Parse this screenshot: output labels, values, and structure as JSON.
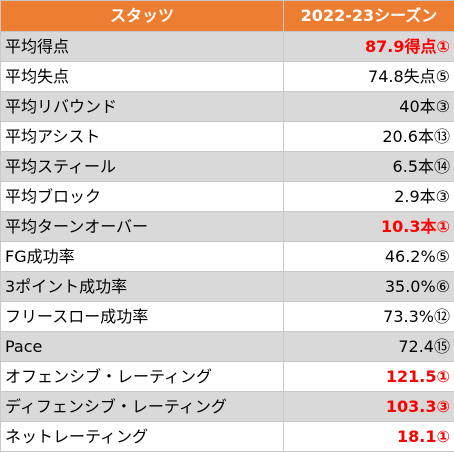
{
  "table": {
    "header": {
      "stat_label": "スタッツ",
      "season_label": "2022-23シーズン"
    },
    "rows": [
      {
        "label": "平均得点",
        "value": "87.9得点①",
        "highlight": true
      },
      {
        "label": "平均失点",
        "value": "74.8失点⑤",
        "highlight": false
      },
      {
        "label": "平均リバウンド",
        "value": "40本③",
        "highlight": false
      },
      {
        "label": "平均アシスト",
        "value": "20.6本⑬",
        "highlight": false
      },
      {
        "label": "平均スティール",
        "value": "6.5本⑭",
        "highlight": false
      },
      {
        "label": "平均ブロック",
        "value": "2.9本③",
        "highlight": false
      },
      {
        "label": "平均ターンオーバー",
        "value": "10.3本①",
        "highlight": true
      },
      {
        "label": "FG成功率",
        "value": "46.2%⑤",
        "highlight": false
      },
      {
        "label": "3ポイント成功率",
        "value": "35.0%⑥",
        "highlight": false
      },
      {
        "label": "フリースロー成功率",
        "value": "73.3%⑫",
        "highlight": false
      },
      {
        "label": "Pace",
        "value": "72.4⑮",
        "highlight": false
      },
      {
        "label": "オフェンシブ・レーティング",
        "value": "121.5①",
        "highlight": true
      },
      {
        "label": "ディフェンシブ・レーティング",
        "value": "103.3③",
        "highlight": true
      },
      {
        "label": "ネットレーティング",
        "value": "18.1①",
        "highlight": true
      }
    ],
    "colors": {
      "header_bg": "#ed7d31",
      "header_text": "#ffffff",
      "stripe": "#d9d9d9",
      "highlight_text": "#ff0000"
    }
  }
}
